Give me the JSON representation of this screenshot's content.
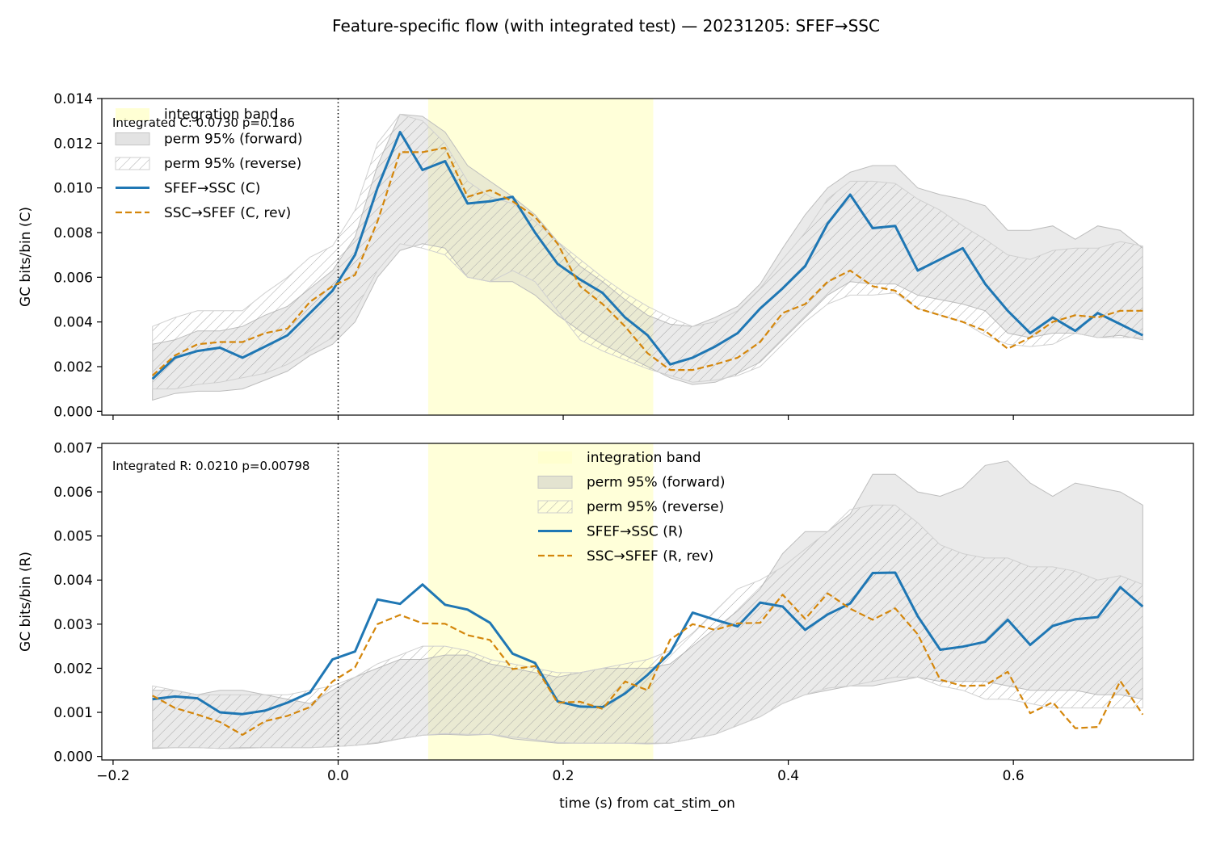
{
  "figure": {
    "suptitle": "Feature-specific flow (with integrated test) — 20231205: SFEF→SSC",
    "xlabel": "time (s) from cat_stim_on"
  },
  "colors": {
    "forward": "#1f77b4",
    "reverse": "#d4860b",
    "band": "#ffffcc",
    "perm": "#c8c8c8",
    "hatch": "#9a9a9a"
  },
  "chart_data": [
    {
      "type": "line",
      "ylabel": "GC bits/bin (C)",
      "annotation": "Integrated C: 0.0730  p=0.186",
      "ylim": [
        0,
        0.014
      ],
      "yticks": [
        "0.000",
        "0.002",
        "0.004",
        "0.006",
        "0.008",
        "0.010",
        "0.012",
        "0.014"
      ],
      "xlim": [
        -0.21,
        0.76
      ],
      "xticks": [],
      "vline": 0,
      "integration_band": [
        0.08,
        0.28
      ],
      "legend_location": "upper-left",
      "legend": [
        "integration band",
        "perm 95% (forward)",
        "perm 95% (reverse)",
        "SFEF→SSC (C)",
        "SSC→SFEF (C, rev)"
      ],
      "x": [
        -0.165,
        -0.145,
        -0.125,
        -0.105,
        -0.085,
        -0.065,
        -0.045,
        -0.025,
        -0.005,
        0.015,
        0.035,
        0.055,
        0.075,
        0.095,
        0.115,
        0.135,
        0.155,
        0.175,
        0.195,
        0.215,
        0.235,
        0.255,
        0.275,
        0.295,
        0.315,
        0.335,
        0.355,
        0.375,
        0.395,
        0.415,
        0.435,
        0.455,
        0.475,
        0.495,
        0.515,
        0.535,
        0.555,
        0.575,
        0.595,
        0.615,
        0.635,
        0.655,
        0.675,
        0.695,
        0.715
      ],
      "series": [
        {
          "name": "SFEF→SSC (C)",
          "values": [
            0.00145,
            0.0024,
            0.0027,
            0.00285,
            0.0024,
            0.0029,
            0.0034,
            0.0044,
            0.0054,
            0.007,
            0.01,
            0.0125,
            0.0108,
            0.0112,
            0.0093,
            0.0094,
            0.0096,
            0.008,
            0.0066,
            0.0059,
            0.0053,
            0.0042,
            0.0034,
            0.0021,
            0.0024,
            0.0029,
            0.0035,
            0.0046,
            0.0055,
            0.0065,
            0.0084,
            0.0097,
            0.0082,
            0.0083,
            0.0063,
            0.0068,
            0.0073,
            0.0057,
            0.0045,
            0.0035,
            0.0042,
            0.0036,
            0.0044,
            0.0039,
            0.0034
          ]
        },
        {
          "name": "SSC→SFEF (C, rev)",
          "values": [
            0.0016,
            0.0025,
            0.003,
            0.0031,
            0.0031,
            0.0035,
            0.0037,
            0.0049,
            0.0056,
            0.0061,
            0.0085,
            0.0116,
            0.0116,
            0.0118,
            0.0096,
            0.0099,
            0.0094,
            0.0087,
            0.0075,
            0.0056,
            0.0048,
            0.0038,
            0.0026,
            0.00185,
            0.00185,
            0.0021,
            0.0024,
            0.0031,
            0.0044,
            0.0048,
            0.0058,
            0.0063,
            0.0056,
            0.0054,
            0.0046,
            0.0043,
            0.004,
            0.0036,
            0.0028,
            0.0033,
            0.004,
            0.0043,
            0.0042,
            0.0045,
            0.0045
          ]
        }
      ],
      "perm_forward": {
        "lower": [
          0.0005,
          0.0008,
          0.0009,
          0.0009,
          0.001,
          0.0014,
          0.0018,
          0.0025,
          0.003,
          0.004,
          0.006,
          0.0072,
          0.0075,
          0.0073,
          0.006,
          0.0058,
          0.0058,
          0.0052,
          0.0043,
          0.0036,
          0.003,
          0.0025,
          0.002,
          0.0015,
          0.0012,
          0.0013,
          0.0017,
          0.0022,
          0.0032,
          0.0042,
          0.0052,
          0.0058,
          0.0057,
          0.0057,
          0.0052,
          0.005,
          0.0048,
          0.0045,
          0.0035,
          0.0033,
          0.0035,
          0.0035,
          0.0033,
          0.0034,
          0.0032
        ],
        "upper": [
          0.003,
          0.0032,
          0.0036,
          0.0036,
          0.0038,
          0.0043,
          0.0047,
          0.0055,
          0.0063,
          0.0078,
          0.011,
          0.0133,
          0.0132,
          0.0125,
          0.011,
          0.0103,
          0.0096,
          0.0088,
          0.0076,
          0.0065,
          0.0058,
          0.005,
          0.0043,
          0.0039,
          0.0038,
          0.0042,
          0.0047,
          0.0057,
          0.0073,
          0.0088,
          0.01,
          0.0107,
          0.011,
          0.011,
          0.01,
          0.0097,
          0.0095,
          0.0092,
          0.0081,
          0.0081,
          0.0083,
          0.0077,
          0.0083,
          0.0081,
          0.0073
        ]
      },
      "perm_reverse": {
        "lower": [
          0.001,
          0.001,
          0.0012,
          0.0013,
          0.0015,
          0.0017,
          0.0021,
          0.0027,
          0.0033,
          0.0045,
          0.0063,
          0.0075,
          0.0073,
          0.007,
          0.006,
          0.0058,
          0.0063,
          0.0058,
          0.0045,
          0.0032,
          0.0027,
          0.0023,
          0.0019,
          0.0016,
          0.0013,
          0.0014,
          0.0016,
          0.002,
          0.003,
          0.004,
          0.0048,
          0.0052,
          0.0052,
          0.0053,
          0.0046,
          0.0043,
          0.004,
          0.0034,
          0.003,
          0.0029,
          0.003,
          0.0035,
          0.0033,
          0.0033,
          0.0033
        ],
        "upper": [
          0.0038,
          0.0042,
          0.0045,
          0.0045,
          0.0045,
          0.0053,
          0.006,
          0.0069,
          0.0074,
          0.009,
          0.012,
          0.0133,
          0.013,
          0.012,
          0.0103,
          0.0096,
          0.0093,
          0.0085,
          0.0076,
          0.0068,
          0.006,
          0.0053,
          0.0047,
          0.0042,
          0.0038,
          0.004,
          0.0045,
          0.0055,
          0.0068,
          0.008,
          0.0095,
          0.0103,
          0.0103,
          0.0102,
          0.0095,
          0.009,
          0.0083,
          0.0077,
          0.007,
          0.0068,
          0.0072,
          0.0073,
          0.0073,
          0.0076,
          0.0074
        ]
      }
    },
    {
      "type": "line",
      "ylabel": "GC bits/bin (R)",
      "annotation": "Integrated R: 0.0210  p=0.00798",
      "ylim": [
        0,
        0.007
      ],
      "yticks": [
        "0.000",
        "0.001",
        "0.002",
        "0.003",
        "0.004",
        "0.005",
        "0.006",
        "0.007"
      ],
      "xlim": [
        -0.21,
        0.76
      ],
      "xticks": [
        "−0.2",
        "0.0",
        "0.2",
        "0.4",
        "0.6"
      ],
      "vline": 0,
      "integration_band": [
        0.08,
        0.28
      ],
      "legend_location": "upper-center",
      "legend": [
        "integration band",
        "perm 95% (forward)",
        "perm 95% (reverse)",
        "SFEF→SSC (R)",
        "SSC→SFEF (R, rev)"
      ],
      "x": [
        -0.165,
        -0.145,
        -0.125,
        -0.105,
        -0.085,
        -0.065,
        -0.045,
        -0.025,
        -0.005,
        0.015,
        0.035,
        0.055,
        0.075,
        0.095,
        0.115,
        0.135,
        0.155,
        0.175,
        0.195,
        0.215,
        0.235,
        0.255,
        0.275,
        0.295,
        0.315,
        0.335,
        0.355,
        0.375,
        0.395,
        0.415,
        0.435,
        0.455,
        0.475,
        0.495,
        0.515,
        0.535,
        0.555,
        0.575,
        0.595,
        0.615,
        0.635,
        0.655,
        0.675,
        0.695,
        0.715
      ],
      "series": [
        {
          "name": "SFEF→SSC (R)",
          "values": [
            0.0013,
            0.00136,
            0.00132,
            0.001,
            0.00096,
            0.00104,
            0.00122,
            0.00145,
            0.0022,
            0.00238,
            0.00356,
            0.00346,
            0.0039,
            0.00344,
            0.00333,
            0.00303,
            0.00233,
            0.00212,
            0.00125,
            0.00113,
            0.00112,
            0.00143,
            0.00185,
            0.00235,
            0.00326,
            0.0031,
            0.00295,
            0.00349,
            0.0034,
            0.00287,
            0.00322,
            0.00347,
            0.00416,
            0.00417,
            0.00318,
            0.00242,
            0.00249,
            0.0026,
            0.0031,
            0.00253,
            0.00296,
            0.00311,
            0.00316,
            0.00384,
            0.0034
          ]
        },
        {
          "name": "SSC→SFEF (R, rev)",
          "values": [
            0.00138,
            0.0011,
            0.00095,
            0.00078,
            0.00049,
            0.0008,
            0.00092,
            0.00112,
            0.0017,
            0.00202,
            0.003,
            0.00321,
            0.00302,
            0.00301,
            0.00275,
            0.00264,
            0.00198,
            0.00205,
            0.00122,
            0.00124,
            0.00108,
            0.0017,
            0.0015,
            0.00265,
            0.003,
            0.00287,
            0.00302,
            0.00303,
            0.00367,
            0.00312,
            0.0037,
            0.00335,
            0.0031,
            0.00336,
            0.00277,
            0.00174,
            0.0016,
            0.00161,
            0.00192,
            0.00098,
            0.00123,
            0.00064,
            0.00067,
            0.00171,
            0.00095
          ]
        }
      ],
      "perm_forward": {
        "lower": [
          0.00018,
          0.0002,
          0.0002,
          0.00018,
          0.0002,
          0.0002,
          0.0002,
          0.0002,
          0.00022,
          0.00025,
          0.0003,
          0.0004,
          0.00048,
          0.0005,
          0.00048,
          0.0005,
          0.0004,
          0.00035,
          0.0003,
          0.0003,
          0.0003,
          0.0003,
          0.0003,
          0.0003,
          0.0004,
          0.0005,
          0.0007,
          0.0009,
          0.0012,
          0.0014,
          0.0015,
          0.0016,
          0.0016,
          0.0017,
          0.0018,
          0.0017,
          0.0017,
          0.0017,
          0.0016,
          0.0015,
          0.0015,
          0.0015,
          0.0014,
          0.0014,
          0.0013
        ],
        "upper": [
          0.0015,
          0.0015,
          0.0014,
          0.0015,
          0.0015,
          0.0014,
          0.0013,
          0.0012,
          0.0015,
          0.0018,
          0.002,
          0.0022,
          0.0022,
          0.0023,
          0.0023,
          0.0021,
          0.002,
          0.0019,
          0.0018,
          0.0019,
          0.002,
          0.002,
          0.002,
          0.0021,
          0.0025,
          0.0029,
          0.0033,
          0.0038,
          0.0046,
          0.0051,
          0.0051,
          0.0055,
          0.0064,
          0.0064,
          0.006,
          0.0059,
          0.0061,
          0.0066,
          0.0067,
          0.0062,
          0.0059,
          0.0062,
          0.0061,
          0.006,
          0.0057
        ]
      },
      "perm_reverse": {
        "lower": [
          0.0002,
          0.0002,
          0.0002,
          0.00018,
          0.00018,
          0.0002,
          0.0002,
          0.0002,
          0.00022,
          0.00025,
          0.00032,
          0.0004,
          0.00048,
          0.00052,
          0.0005,
          0.0005,
          0.00044,
          0.00038,
          0.00032,
          0.0003,
          0.0003,
          0.0003,
          0.00028,
          0.0003,
          0.0004,
          0.0005,
          0.0007,
          0.0009,
          0.0012,
          0.0014,
          0.00155,
          0.0016,
          0.0017,
          0.0018,
          0.0018,
          0.0016,
          0.0015,
          0.0013,
          0.0013,
          0.0012,
          0.0011,
          0.0011,
          0.0011,
          0.0011,
          0.0011
        ],
        "upper": [
          0.0016,
          0.0015,
          0.0014,
          0.0014,
          0.0014,
          0.0014,
          0.0014,
          0.0015,
          0.0016,
          0.0018,
          0.0021,
          0.0023,
          0.0025,
          0.0025,
          0.0024,
          0.0022,
          0.0021,
          0.002,
          0.0019,
          0.0019,
          0.002,
          0.0021,
          0.0022,
          0.0024,
          0.0028,
          0.0033,
          0.0038,
          0.004,
          0.0043,
          0.0047,
          0.0051,
          0.0056,
          0.0057,
          0.0057,
          0.0053,
          0.0048,
          0.0046,
          0.0045,
          0.0045,
          0.0043,
          0.0043,
          0.0042,
          0.004,
          0.0041,
          0.0039
        ]
      }
    }
  ]
}
